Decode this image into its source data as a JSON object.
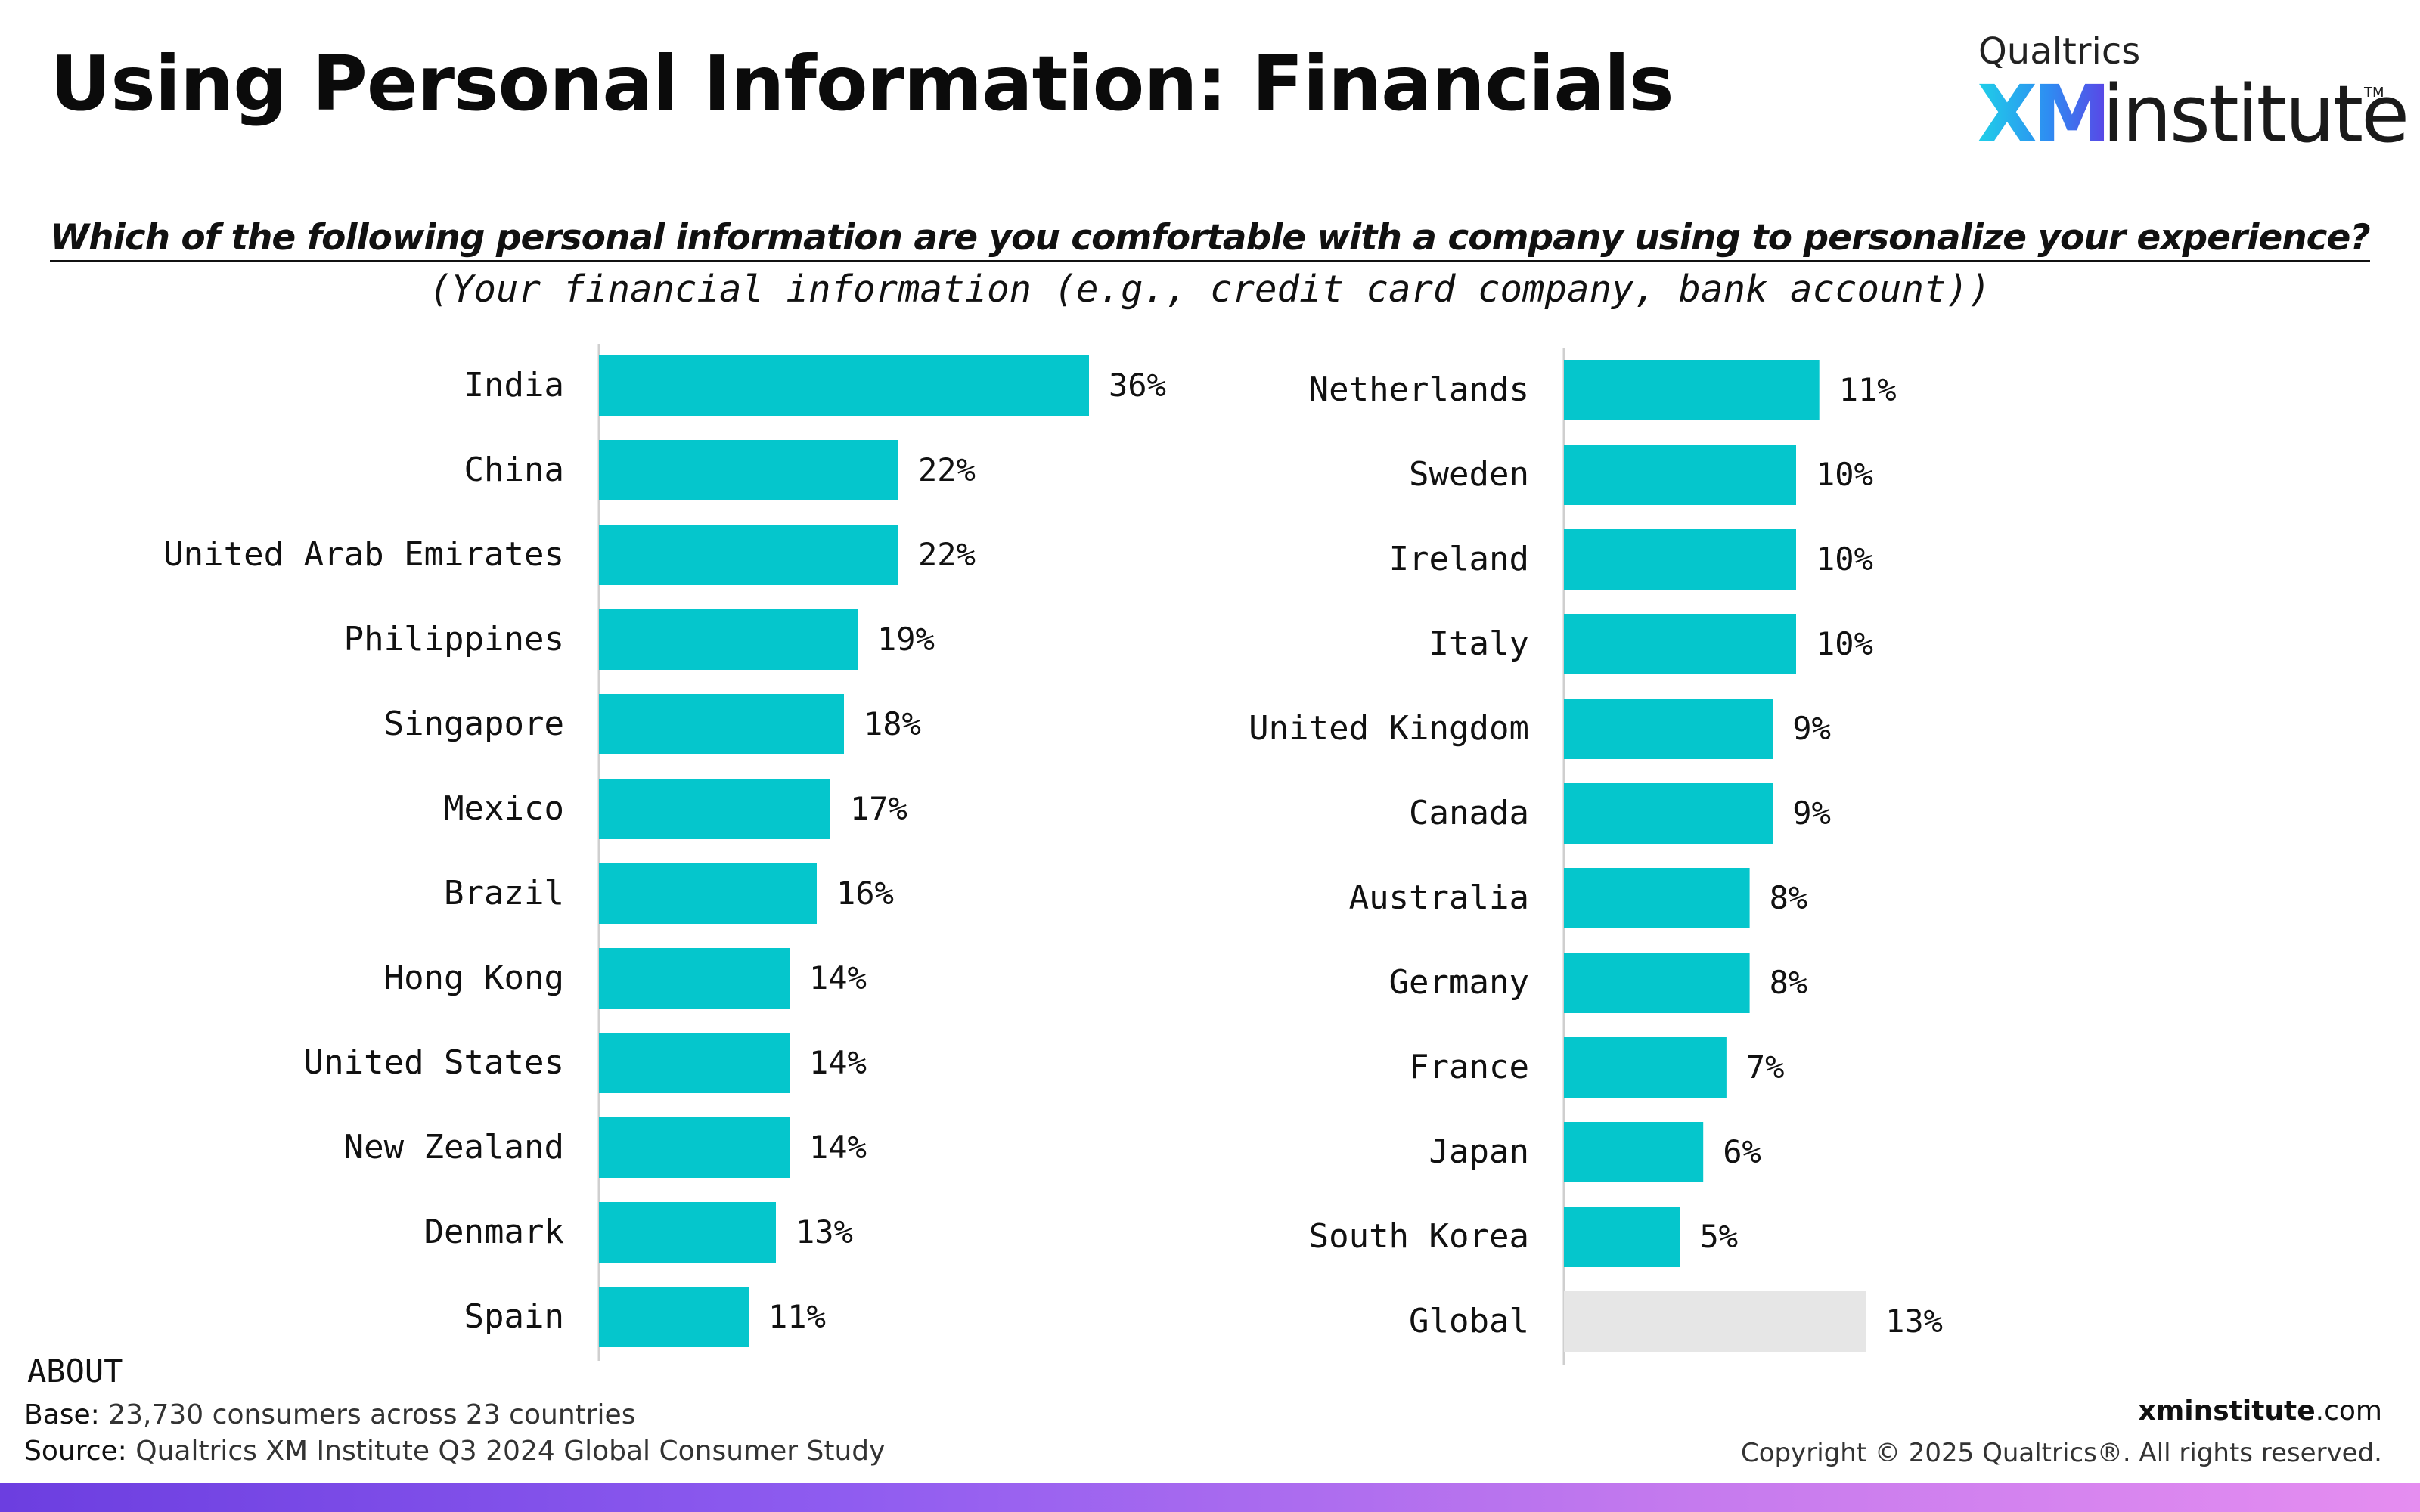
{
  "header": {
    "title": "Using Personal Information: Financials",
    "logo_brand": "Qualtrics",
    "logo_xm": "XM",
    "logo_word": "institute",
    "logo_tm": "TM"
  },
  "question": "Which of the following personal information are you comfortable with a company using to personalize your experience?",
  "subtitle": "(Your financial information (e.g., credit card company, bank account))",
  "colors": {
    "bar": "#05c6cc",
    "global_bar": "#e6e6e6",
    "axis": "#cfcfcf",
    "logo_gradient": [
      "#1fd0e8",
      "#2e8df2",
      "#5a45e6"
    ]
  },
  "chart_data": [
    {
      "type": "bar",
      "orientation": "horizontal",
      "categories": [
        "India",
        "China",
        "United Arab Emirates",
        "Philippines",
        "Singapore",
        "Mexico",
        "Brazil",
        "Hong Kong",
        "United States",
        "New Zealand",
        "Denmark",
        "Spain"
      ],
      "values": [
        36,
        22,
        22,
        19,
        18,
        17,
        16,
        14,
        14,
        14,
        13,
        11
      ],
      "labels": [
        "36%",
        "22%",
        "22%",
        "19%",
        "18%",
        "17%",
        "16%",
        "14%",
        "14%",
        "14%",
        "13%",
        "11%"
      ]
    },
    {
      "type": "bar",
      "orientation": "horizontal",
      "categories": [
        "Netherlands",
        "Sweden",
        "Ireland",
        "Italy",
        "United Kingdom",
        "Canada",
        "Australia",
        "Germany",
        "France",
        "Japan",
        "South Korea",
        "Global"
      ],
      "values": [
        11,
        10,
        10,
        10,
        9,
        9,
        8,
        8,
        7,
        6,
        5,
        13
      ],
      "labels": [
        "11%",
        "10%",
        "10%",
        "10%",
        "9%",
        "9%",
        "8%",
        "8%",
        "7%",
        "6%",
        "5%",
        "13%"
      ],
      "highlight_category": "Global"
    }
  ],
  "footer": {
    "about": "ABOUT",
    "base_key": "Base:",
    "base_value": "23,730 consumers across 23 countries",
    "source_key": "Source:",
    "source_value": "Qualtrics XM Institute Q3 2024 Global Consumer Study",
    "site_bold": "xminstitute",
    "site_rest": ".com",
    "copyright": "Copyright © 2025 Qualtrics®. All rights reserved."
  }
}
